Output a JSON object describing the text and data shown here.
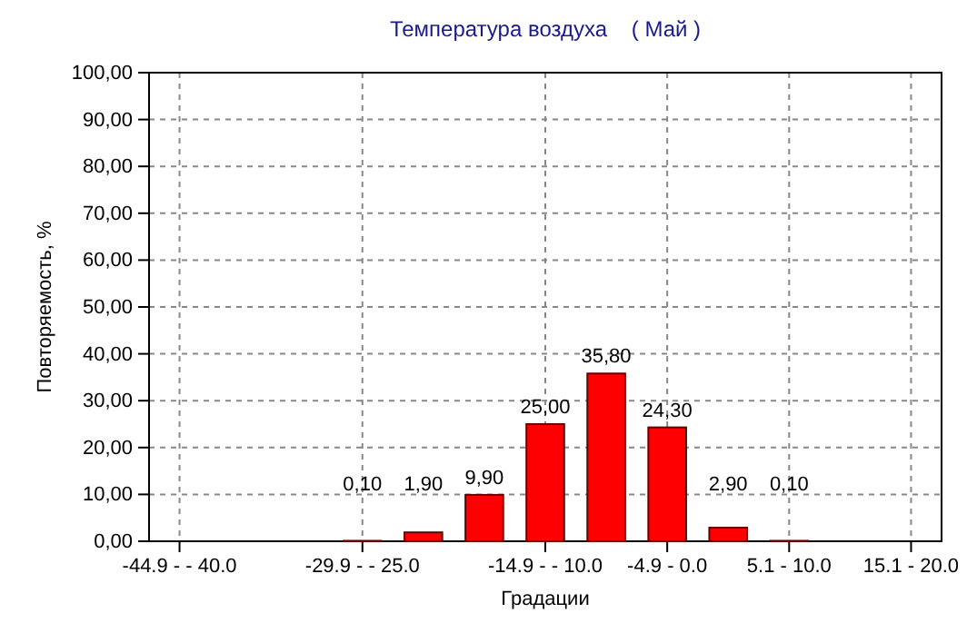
{
  "chart_data": {
    "type": "bar",
    "title": "Температура воздуха    ( Май )",
    "xlabel": "Градации",
    "ylabel": "Повторяемость, %",
    "categories": [
      "-44.9 -  - 40.0",
      null,
      null,
      "-29.9 -  - 25.0",
      null,
      null,
      "-14.9 -  - 10.0",
      null,
      "-4.9 - 0.0",
      null,
      "5.1 - 10.0",
      null,
      "15.1 - 20.0"
    ],
    "values": [
      0,
      0,
      0,
      0.1,
      1.9,
      9.9,
      25,
      35.8,
      24.3,
      2.9,
      0.1,
      0,
      0
    ],
    "value_labels": [
      null,
      null,
      null,
      "0,10",
      "1,90",
      "9,90",
      "25,00",
      "35,80",
      "24,30",
      "2,90",
      "0,10",
      null,
      null
    ],
    "color": "#ff0000",
    "ylim": [
      0,
      100
    ],
    "yticks": [
      {
        "value": 0,
        "label": "0,00"
      },
      {
        "value": 10,
        "label": "10,00"
      },
      {
        "value": 20,
        "label": "20,00"
      },
      {
        "value": 30,
        "label": "30,00"
      },
      {
        "value": 40,
        "label": "40,00"
      },
      {
        "value": 50,
        "label": "50,00"
      },
      {
        "value": 60,
        "label": "60,00"
      },
      {
        "value": 70,
        "label": "70,00"
      },
      {
        "value": 80,
        "label": "80,00"
      },
      {
        "value": 90,
        "label": "90,00"
      },
      {
        "value": 100,
        "label": "100,00"
      }
    ],
    "grid": true
  }
}
